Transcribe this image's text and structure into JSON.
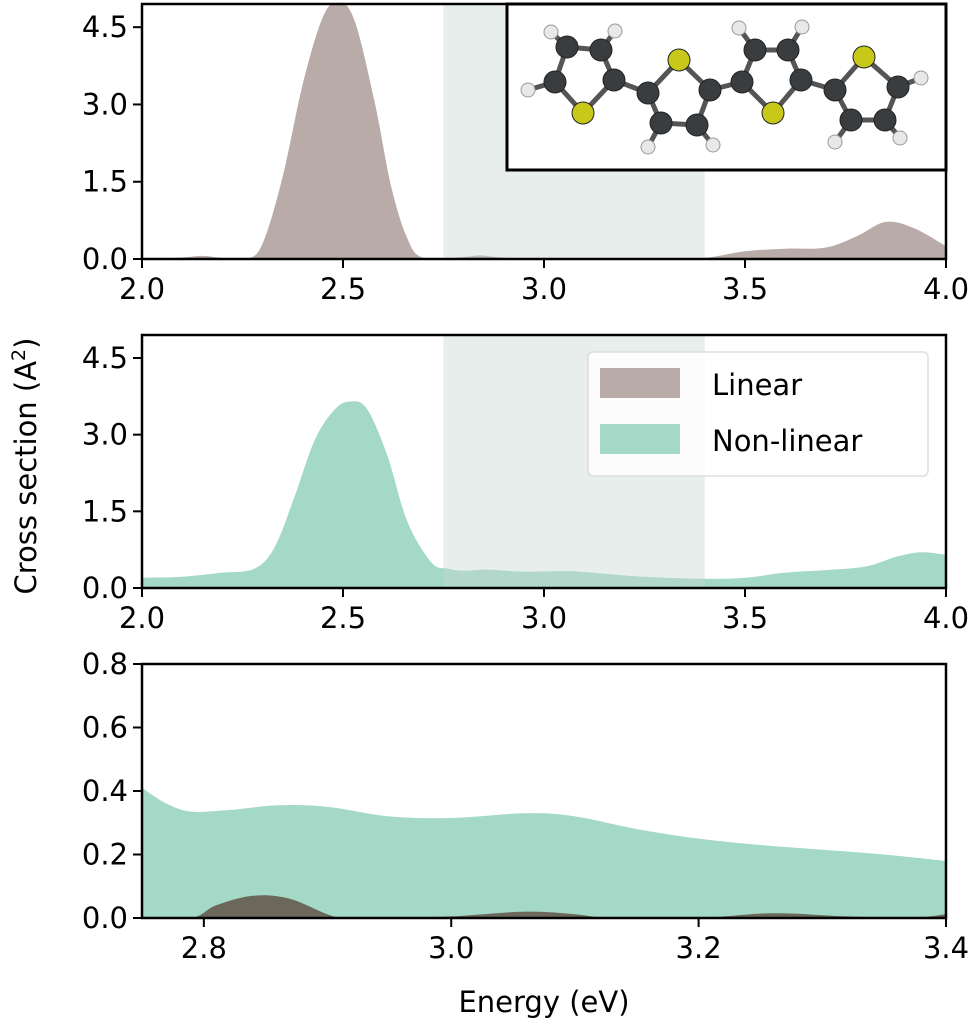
{
  "chart_data": [
    {
      "type": "area",
      "xlim": [
        2.0,
        4.0
      ],
      "ylim": [
        0,
        4.95
      ],
      "xticks": [
        "2.0",
        "2.5",
        "3.0",
        "3.5",
        "4.0"
      ],
      "yticks": [
        "0.0",
        "1.5",
        "3.0",
        "4.5"
      ],
      "highlight_range": [
        2.75,
        3.4
      ],
      "inset": "quaterthiophene molecule",
      "series": [
        {
          "name": "Linear",
          "color": "#b9aca8",
          "x": [
            2.0,
            2.1,
            2.15,
            2.2,
            2.26,
            2.3,
            2.35,
            2.4,
            2.45,
            2.49,
            2.53,
            2.58,
            2.62,
            2.66,
            2.7,
            2.8,
            2.84,
            2.88,
            2.95,
            3.06,
            3.15,
            3.3,
            3.4,
            3.5,
            3.6,
            3.7,
            3.78,
            3.85,
            3.92,
            4.0
          ],
          "values": [
            0.0,
            0.03,
            0.06,
            0.02,
            0.0,
            0.3,
            1.6,
            3.4,
            4.7,
            5.0,
            4.6,
            3.0,
            1.4,
            0.4,
            0.02,
            0.04,
            0.07,
            0.04,
            0.01,
            0.02,
            0.01,
            0.01,
            0.02,
            0.15,
            0.2,
            0.22,
            0.45,
            0.72,
            0.6,
            0.25
          ]
        }
      ]
    },
    {
      "type": "area",
      "xlim": [
        2.0,
        4.0
      ],
      "ylim": [
        0,
        4.95
      ],
      "xticks": [
        "2.0",
        "2.5",
        "3.0",
        "3.5",
        "4.0"
      ],
      "yticks": [
        "0.0",
        "1.5",
        "3.0",
        "4.5"
      ],
      "highlight_range": [
        2.75,
        3.4
      ],
      "legend": {
        "placement": "upper-right",
        "entries": [
          "Linear",
          "Non-linear"
        ]
      },
      "series": [
        {
          "name": "Non-linear",
          "color": "#a3d9c6",
          "x": [
            2.0,
            2.1,
            2.2,
            2.28,
            2.33,
            2.38,
            2.43,
            2.48,
            2.52,
            2.56,
            2.61,
            2.66,
            2.72,
            2.76,
            2.8,
            2.86,
            2.95,
            3.06,
            3.15,
            3.25,
            3.4,
            3.5,
            3.6,
            3.7,
            3.8,
            3.88,
            3.94,
            4.0
          ],
          "values": [
            0.2,
            0.22,
            0.3,
            0.38,
            0.8,
            1.8,
            2.9,
            3.5,
            3.65,
            3.5,
            2.6,
            1.3,
            0.5,
            0.38,
            0.34,
            0.36,
            0.32,
            0.33,
            0.28,
            0.22,
            0.18,
            0.2,
            0.3,
            0.35,
            0.42,
            0.62,
            0.7,
            0.65
          ]
        }
      ]
    },
    {
      "type": "area",
      "xlim": [
        2.75,
        3.4
      ],
      "ylim": [
        0,
        0.8
      ],
      "xticks": [
        "2.8",
        "3.0",
        "3.2",
        "3.4"
      ],
      "yticks": [
        "0.0",
        "0.2",
        "0.4",
        "0.6",
        "0.8"
      ],
      "xlabel": "Energy (eV)",
      "series": [
        {
          "name": "Non-linear",
          "color": "#a3d9c6",
          "x": [
            2.75,
            2.77,
            2.79,
            2.82,
            2.86,
            2.9,
            2.95,
            3.0,
            3.06,
            3.1,
            3.15,
            3.2,
            3.25,
            3.3,
            3.35,
            3.4
          ],
          "values": [
            0.41,
            0.36,
            0.335,
            0.34,
            0.355,
            0.35,
            0.32,
            0.315,
            0.33,
            0.32,
            0.28,
            0.25,
            0.23,
            0.215,
            0.2,
            0.18
          ]
        },
        {
          "name": "Linear",
          "color": "#6b675b",
          "x": [
            2.75,
            2.79,
            2.81,
            2.84,
            2.87,
            2.91,
            2.95,
            3.0,
            3.06,
            3.1,
            3.13,
            3.2,
            3.26,
            3.32,
            3.37,
            3.4
          ],
          "values": [
            0.0,
            0.0,
            0.04,
            0.07,
            0.06,
            0.0,
            0.0,
            0.005,
            0.02,
            0.012,
            0.0,
            0.0,
            0.015,
            0.005,
            0.0,
            0.012
          ]
        }
      ]
    }
  ],
  "ylabel": "Cross section (A",
  "ylabel_sup": "2",
  "ylabel_close": ")",
  "shade_color": "#c9d6d2"
}
